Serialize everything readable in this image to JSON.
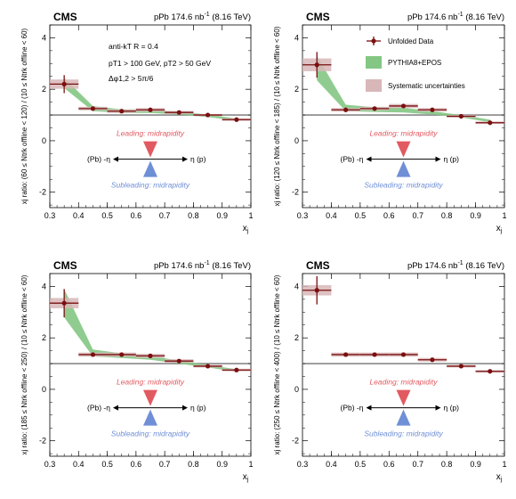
{
  "figure": {
    "shared": {
      "experiment": "CMS",
      "lumi_prefix": "pPb 174.6 nb",
      "lumi_exp": "-1",
      "energy": "(8.16 TeV)",
      "xlabel": "x",
      "xlabel_sub": "j",
      "xticks": [
        "0.3",
        "0.4",
        "0.5",
        "0.6",
        "0.7",
        "0.8",
        "0.9",
        "1"
      ],
      "yticks": [
        "-2",
        "0",
        "2",
        "4"
      ],
      "arrow_left": "(Pb) -η",
      "arrow_right": "η (p)",
      "leading_text": "Leading: midrapidity",
      "subleading_text": "Subleading: midrapidity",
      "colors": {
        "data": "#7a0f0f",
        "pythia": "#84c784",
        "syst": "#d8b7b9",
        "leading": "#e25a61",
        "subleading": "#6f8fd6",
        "reference_line": "#888888"
      }
    },
    "legend": {
      "data_label": "Unfolded Data",
      "pythia_label": "PYTHIA8+EPOS",
      "syst_label": "Systematic uncertainties"
    },
    "annotations": {
      "jet_algo": "anti-kT R = 0.4",
      "pt_cuts": "pT1 > 100 GeV, pT2 > 50 GeV",
      "dphi_cut": "Δφ1,2 > 5π/6"
    }
  },
  "chart_data": [
    {
      "type": "scatter",
      "ylabel": "xj ratio: (60 ≤ Ntrk offline < 120) / (10 ≤ Ntrk offline < 60)",
      "xlim": [
        0.3,
        1.0
      ],
      "ylim": [
        -2.6,
        4.5
      ],
      "series": [
        {
          "name": "Unfolded Data",
          "x": [
            0.35,
            0.45,
            0.55,
            0.65,
            0.75,
            0.85,
            0.95
          ],
          "y": [
            2.2,
            1.25,
            1.15,
            1.2,
            1.1,
            1.0,
            0.82
          ],
          "stat_err": [
            0.35,
            0.05,
            0.05,
            0.05,
            0.04,
            0.03,
            0.03
          ],
          "syst_err": [
            0.18,
            0.07,
            0.07,
            0.07,
            0.06,
            0.04,
            0.05
          ]
        },
        {
          "name": "PYTHIA8+EPOS",
          "x": [
            0.35,
            0.45,
            0.55,
            0.65,
            0.75,
            0.85,
            0.95
          ],
          "y_low": [
            2.05,
            1.15,
            1.08,
            1.08,
            1.02,
            0.92,
            0.78
          ],
          "y_high": [
            2.45,
            1.35,
            1.22,
            1.22,
            1.12,
            1.02,
            0.86
          ]
        }
      ]
    },
    {
      "type": "scatter",
      "ylabel": "xj ratio: (120 ≤ Ntrk offline < 185) / (10 ≤ Ntrk offline < 60)",
      "xlim": [
        0.3,
        1.0
      ],
      "ylim": [
        -2.6,
        4.5
      ],
      "series": [
        {
          "name": "Unfolded Data",
          "x": [
            0.35,
            0.45,
            0.55,
            0.65,
            0.75,
            0.85,
            0.95
          ],
          "y": [
            2.95,
            1.2,
            1.25,
            1.35,
            1.2,
            0.95,
            0.7
          ],
          "stat_err": [
            0.5,
            0.05,
            0.05,
            0.06,
            0.05,
            0.04,
            0.04
          ],
          "syst_err": [
            0.25,
            0.07,
            0.07,
            0.08,
            0.07,
            0.05,
            0.05
          ]
        },
        {
          "name": "PYTHIA8+EPOS",
          "x": [
            0.35,
            0.45,
            0.55,
            0.65,
            0.75,
            0.85,
            0.95
          ],
          "y_low": [
            2.35,
            1.15,
            1.12,
            1.1,
            1.02,
            0.9,
            0.72
          ],
          "y_high": [
            3.3,
            1.4,
            1.3,
            1.28,
            1.15,
            1.0,
            0.82
          ]
        }
      ]
    },
    {
      "type": "scatter",
      "ylabel": "xj ratio: (185 ≤ Ntrk offline < 250) / (10 ≤ Ntrk offline < 60)",
      "xlim": [
        0.3,
        1.0
      ],
      "ylim": [
        -2.6,
        4.5
      ],
      "series": [
        {
          "name": "Unfolded Data",
          "x": [
            0.35,
            0.45,
            0.55,
            0.65,
            0.75,
            0.85,
            0.95
          ],
          "y": [
            3.35,
            1.35,
            1.35,
            1.3,
            1.1,
            0.9,
            0.75
          ],
          "stat_err": [
            0.55,
            0.06,
            0.06,
            0.06,
            0.05,
            0.04,
            0.04
          ],
          "syst_err": [
            0.2,
            0.08,
            0.08,
            0.08,
            0.07,
            0.05,
            0.05
          ]
        },
        {
          "name": "PYTHIA8+EPOS",
          "x": [
            0.35,
            0.45,
            0.55,
            0.65,
            0.75,
            0.85,
            0.95
          ],
          "y_low": [
            2.8,
            1.28,
            1.22,
            1.15,
            1.0,
            0.85,
            0.68
          ],
          "y_high": [
            3.9,
            1.55,
            1.4,
            1.3,
            1.12,
            0.95,
            0.78
          ]
        }
      ]
    },
    {
      "type": "scatter",
      "ylabel": "xj ratio: (250 ≤ Ntrk offline < 400) / (10 ≤ Ntrk offline < 60)",
      "xlim": [
        0.3,
        1.0
      ],
      "ylim": [
        -2.6,
        4.5
      ],
      "series": [
        {
          "name": "Unfolded Data",
          "x": [
            0.35,
            0.45,
            0.55,
            0.65,
            0.75,
            0.85,
            0.95
          ],
          "y": [
            3.85,
            1.35,
            1.35,
            1.35,
            1.15,
            0.9,
            0.7
          ],
          "stat_err": [
            0.55,
            0.06,
            0.06,
            0.06,
            0.05,
            0.04,
            0.04
          ],
          "syst_err": [
            0.2,
            0.08,
            0.08,
            0.08,
            0.07,
            0.05,
            0.05
          ]
        }
      ]
    }
  ]
}
